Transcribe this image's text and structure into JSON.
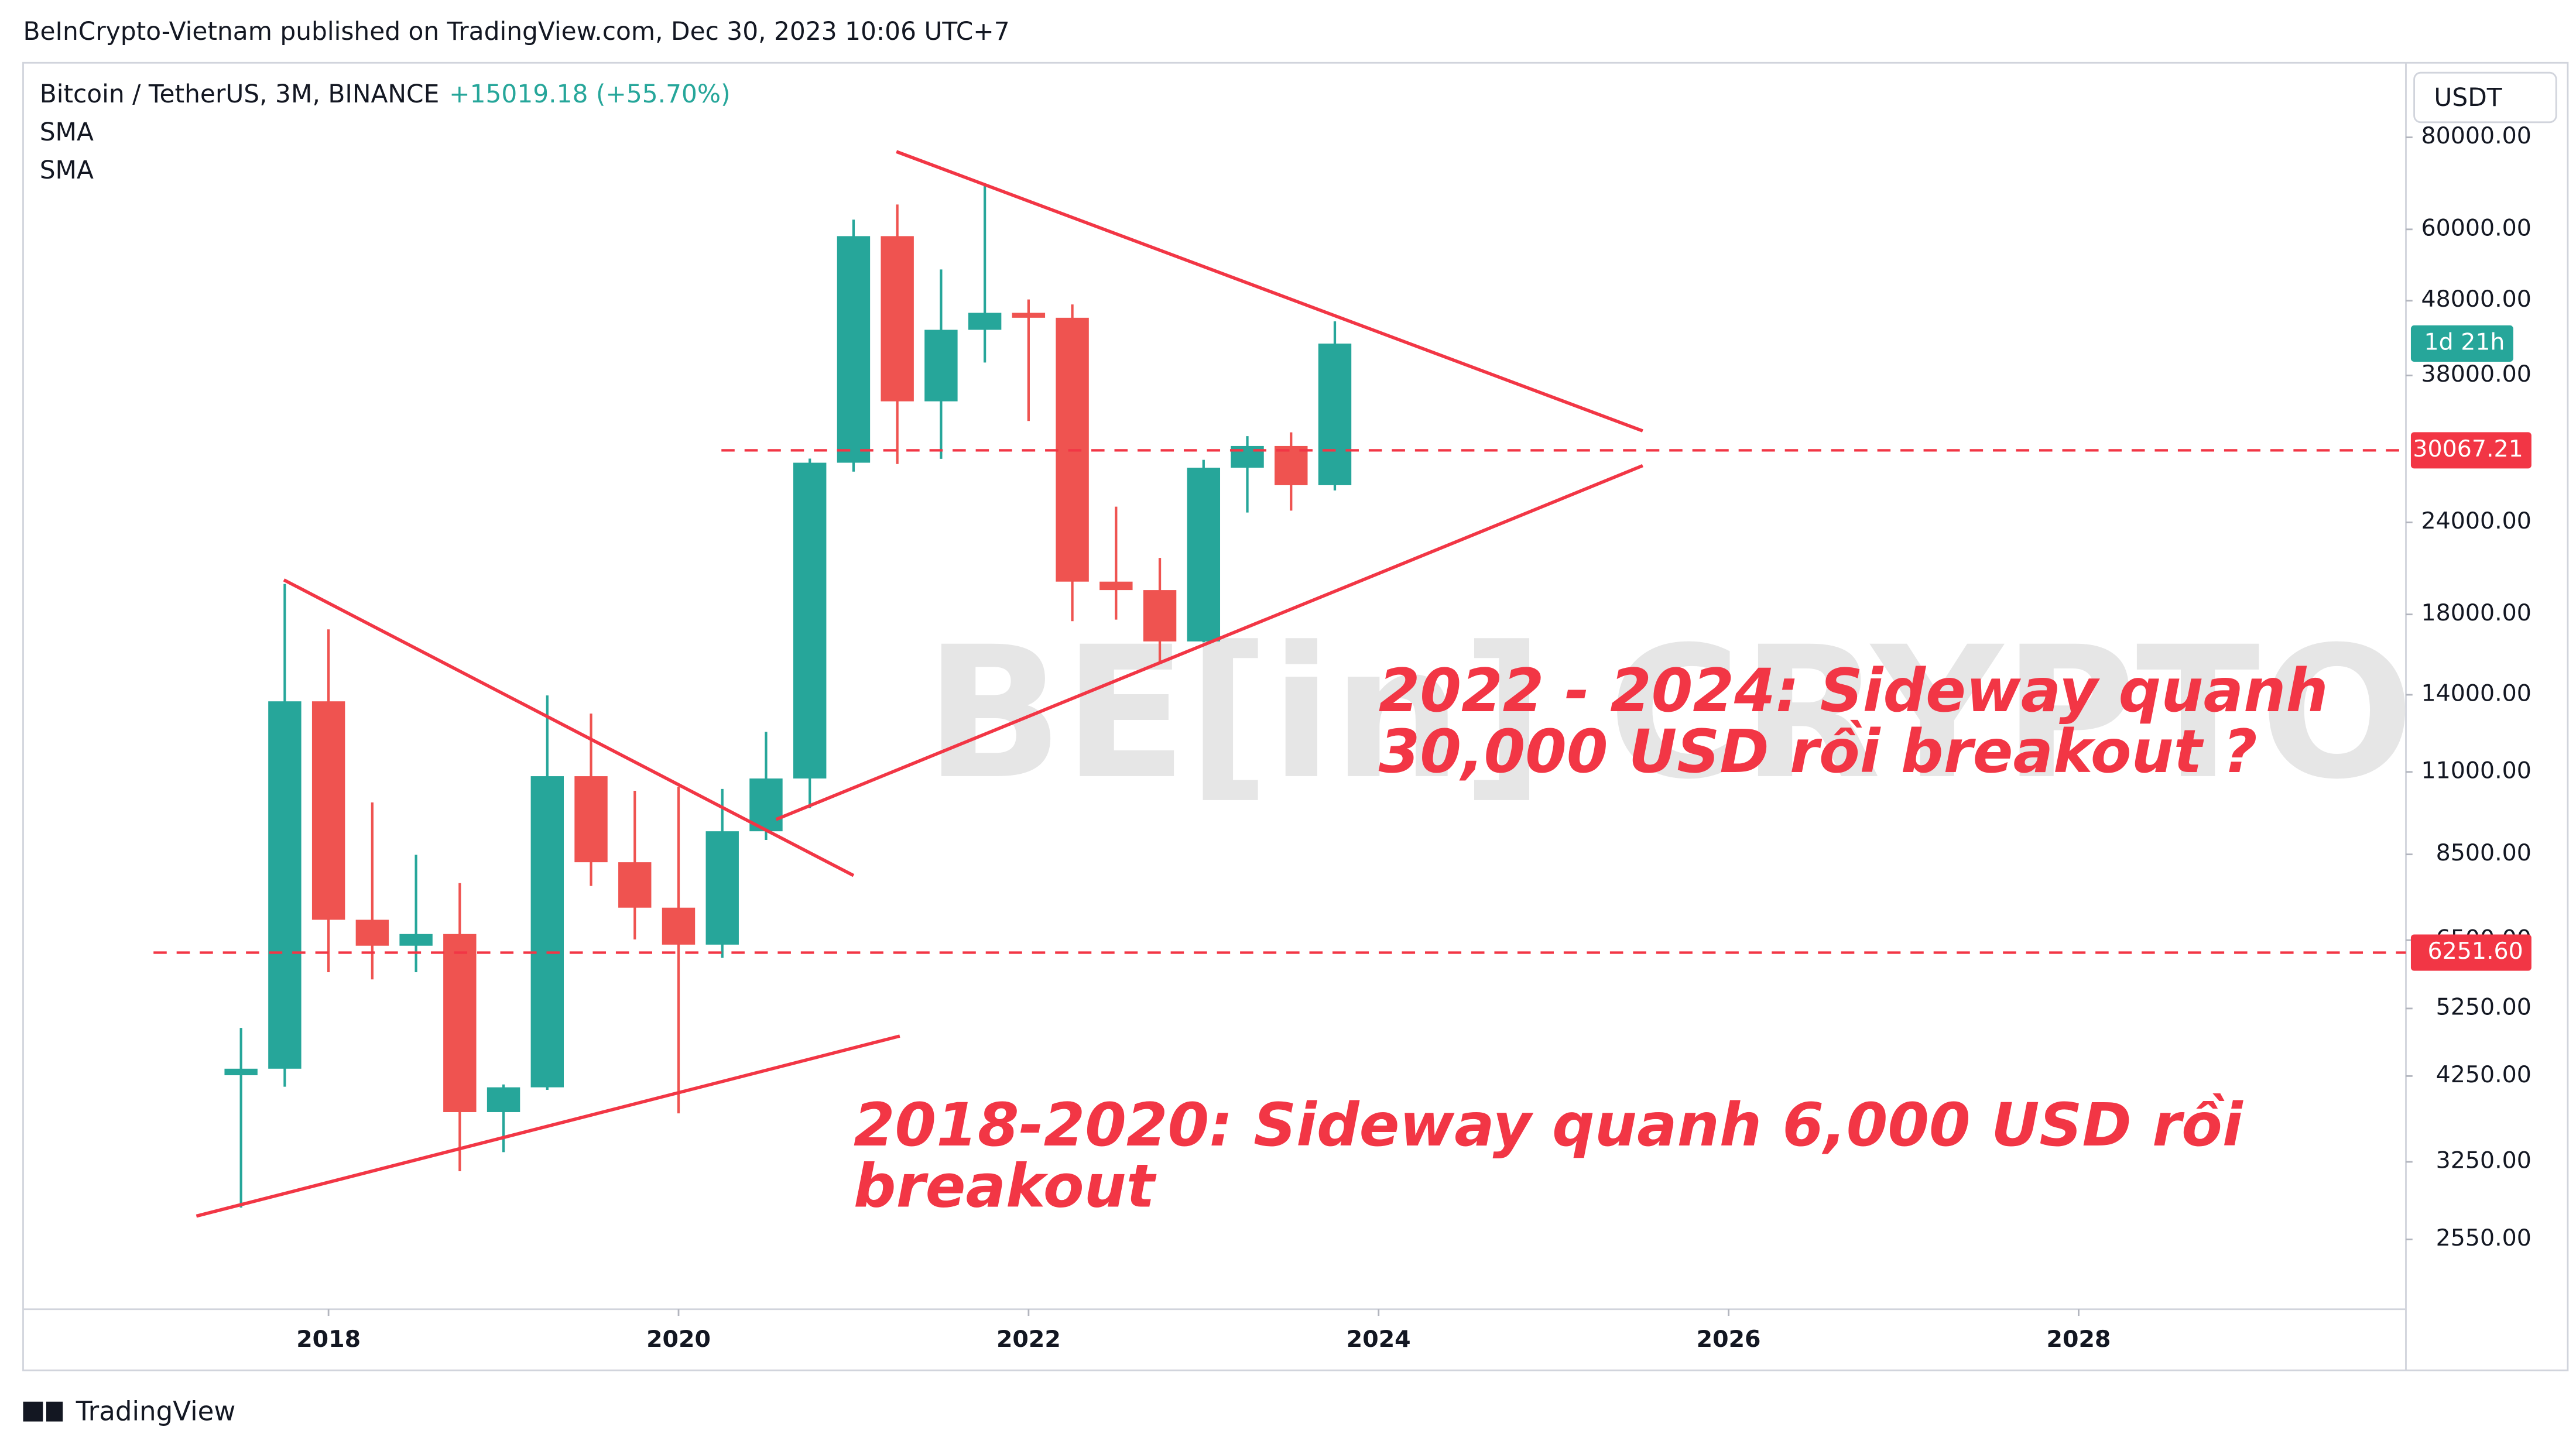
{
  "header": {
    "published": "BeInCrypto-Vietnam published on TradingView.com, Dec 30, 2023 10:06 UTC+7",
    "brand": "TradingView"
  },
  "chart_data": {
    "type": "candlestick",
    "title": "Bitcoin / TetherUS, 3M, BINANCE",
    "change": "+15019.18 (+55.70%)",
    "indicators": [
      "SMA",
      "SMA"
    ],
    "currency": "USDT",
    "countdown": "1d 21h",
    "watermark": "BE[in] CRYPTO",
    "x": [
      2017.5,
      2017.75,
      2018,
      2018.25,
      2018.5,
      2018.75,
      2019,
      2019.25,
      2019.5,
      2019.75,
      2020,
      2020.25,
      2020.5,
      2020.75,
      2021,
      2021.25,
      2021.5,
      2021.75,
      2022,
      2022.25,
      2022.5,
      2022.75,
      2023,
      2023.25,
      2023.5,
      2023.75
    ],
    "open": [
      4261,
      4349,
      13716,
      6928,
      6388,
      6626,
      3797,
      4103,
      10854,
      8293,
      7195,
      6410,
      9137,
      10776,
      28923,
      58740,
      35045,
      43824,
      46216,
      45510,
      19942,
      19423,
      16542,
      28478,
      30477,
      26962
    ],
    "high": [
      4940,
      19798,
      17176,
      10000,
      8488,
      7770,
      4140,
      13970,
      13200,
      10370,
      10500,
      10429,
      12468,
      29300,
      61844,
      64854,
      52920,
      69000,
      48190,
      47444,
      25211,
      21480,
      29184,
      31432,
      31804,
      45000
    ],
    "low": [
      2817,
      4110,
      5880,
      5750,
      5880,
      3156,
      3350,
      4070,
      7700,
      6515,
      3782,
      6150,
      8893,
      9825,
      28130,
      28805,
      29278,
      39560,
      32950,
      17622,
      17708,
      15476,
      16499,
      24750,
      24901,
      26521
    ],
    "close": [
      4349,
      13716,
      6928,
      6388,
      6626,
      3797,
      4103,
      10854,
      8293,
      7195,
      6410,
      9137,
      10776,
      28923,
      58740,
      35045,
      43824,
      46216,
      45510,
      19942,
      19423,
      16542,
      28478,
      30477,
      26962,
      41981
    ],
    "up_color": "#26a69a",
    "down_color": "#ef5350",
    "log_scale": true,
    "xlim": [
      2016.255,
      2029.87
    ],
    "ylim": [
      2050,
      101000
    ],
    "xticks": [
      2018,
      2020,
      2022,
      2024,
      2026,
      2028
    ],
    "yticks": [
      {
        "value": 2550,
        "label": "2550.00"
      },
      {
        "value": 3250,
        "label": "3250.00"
      },
      {
        "value": 4250,
        "label": "4250.00"
      },
      {
        "value": 5250,
        "label": "5250.00"
      },
      {
        "value": 6500,
        "label": "6500.00"
      },
      {
        "value": 8500,
        "label": "8500.00"
      },
      {
        "value": 11000,
        "label": "11000.00"
      },
      {
        "value": 14000,
        "label": "14000.00"
      },
      {
        "value": 18000,
        "label": "18000.00"
      },
      {
        "value": 24000,
        "label": "24000.00"
      },
      {
        "value": 38000,
        "label": "38000.00"
      },
      {
        "value": 48000,
        "label": "48000.00"
      },
      {
        "value": 60000,
        "label": "60000.00"
      },
      {
        "value": 80000,
        "label": "80000.00"
      }
    ],
    "hlines": [
      {
        "value": 30067.21,
        "label": "30067.21",
        "x_start": 2020.245
      },
      {
        "value": 6251.6,
        "label": "6251.60",
        "x_start": 2017.0
      }
    ],
    "trendlines": [
      {
        "x": [
          2017.245,
          2021.264
        ],
        "y": [
          2743,
          4816
        ]
      },
      {
        "x": [
          2017.745,
          2021.0
        ],
        "y": [
          20050,
          7956
        ]
      },
      {
        "x": [
          2021.245,
          2025.509
        ],
        "y": [
          76500,
          31950
        ]
      },
      {
        "x": [
          2020.557,
          2025.509
        ],
        "y": [
          9481,
          28660
        ]
      }
    ],
    "line_color": "#f23645",
    "annotations": [
      {
        "lines": [
          "2022 - 2024: Sideway quanh",
          "30,000 USD rồi breakout ?"
        ],
        "x": 2024.0,
        "y": 14000
      },
      {
        "lines": [
          "2018-2020: Sideway quanh 6,000 USD rồi",
          "breakout"
        ],
        "x": 2021.0,
        "y": 3600
      }
    ]
  }
}
